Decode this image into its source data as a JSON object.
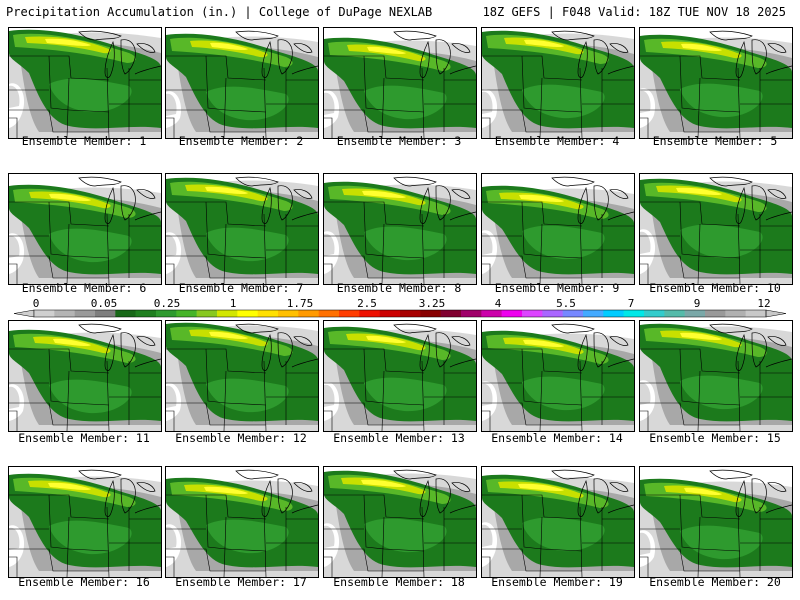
{
  "header": {
    "title_left": "Precipitation Accumulation (in.) | College of DuPage NEXLAB",
    "title_right": "18Z GEFS | F048 Valid: 18Z TUE NOV 18 2025"
  },
  "caption_prefix": "Ensemble Member: ",
  "members": [
    1,
    2,
    3,
    4,
    5,
    6,
    7,
    8,
    9,
    10,
    11,
    12,
    13,
    14,
    15,
    16,
    17,
    18,
    19,
    20
  ],
  "colorbar": {
    "labels": [
      "0",
      "0.05",
      "0.25",
      "1",
      "1.75",
      "2.5",
      "3.25",
      "4",
      "5.5",
      "7",
      "9",
      "12"
    ],
    "colors": [
      "#cfcfcf",
      "#b4b4b4",
      "#9a9a9a",
      "#7e7e7e",
      "#186818",
      "#1f7f1f",
      "#2e9a2e",
      "#46b428",
      "#88c820",
      "#d2e600",
      "#ffff00",
      "#ffe000",
      "#ffc000",
      "#ff9a00",
      "#ff7000",
      "#ff3c00",
      "#ee1000",
      "#cc0000",
      "#a80000",
      "#880000",
      "#800030",
      "#a0006a",
      "#cc00aa",
      "#ee00ee",
      "#dd44ff",
      "#aa66ff",
      "#7788ff",
      "#44aaff",
      "#00ccff",
      "#00e8e8",
      "#33cccc",
      "#55bbaa",
      "#7aa8a8",
      "#999999",
      "#b0b0b0",
      "#c8c8c8"
    ]
  },
  "map_colors": {
    "light_gray": "#d8d8d8",
    "gray": "#a8a8a8",
    "dark_green": "#1c7a1c",
    "mid_green": "#2e9a2e",
    "light_green": "#58b828",
    "yellow_green": "#c8e000",
    "yellow": "#ffff30"
  }
}
